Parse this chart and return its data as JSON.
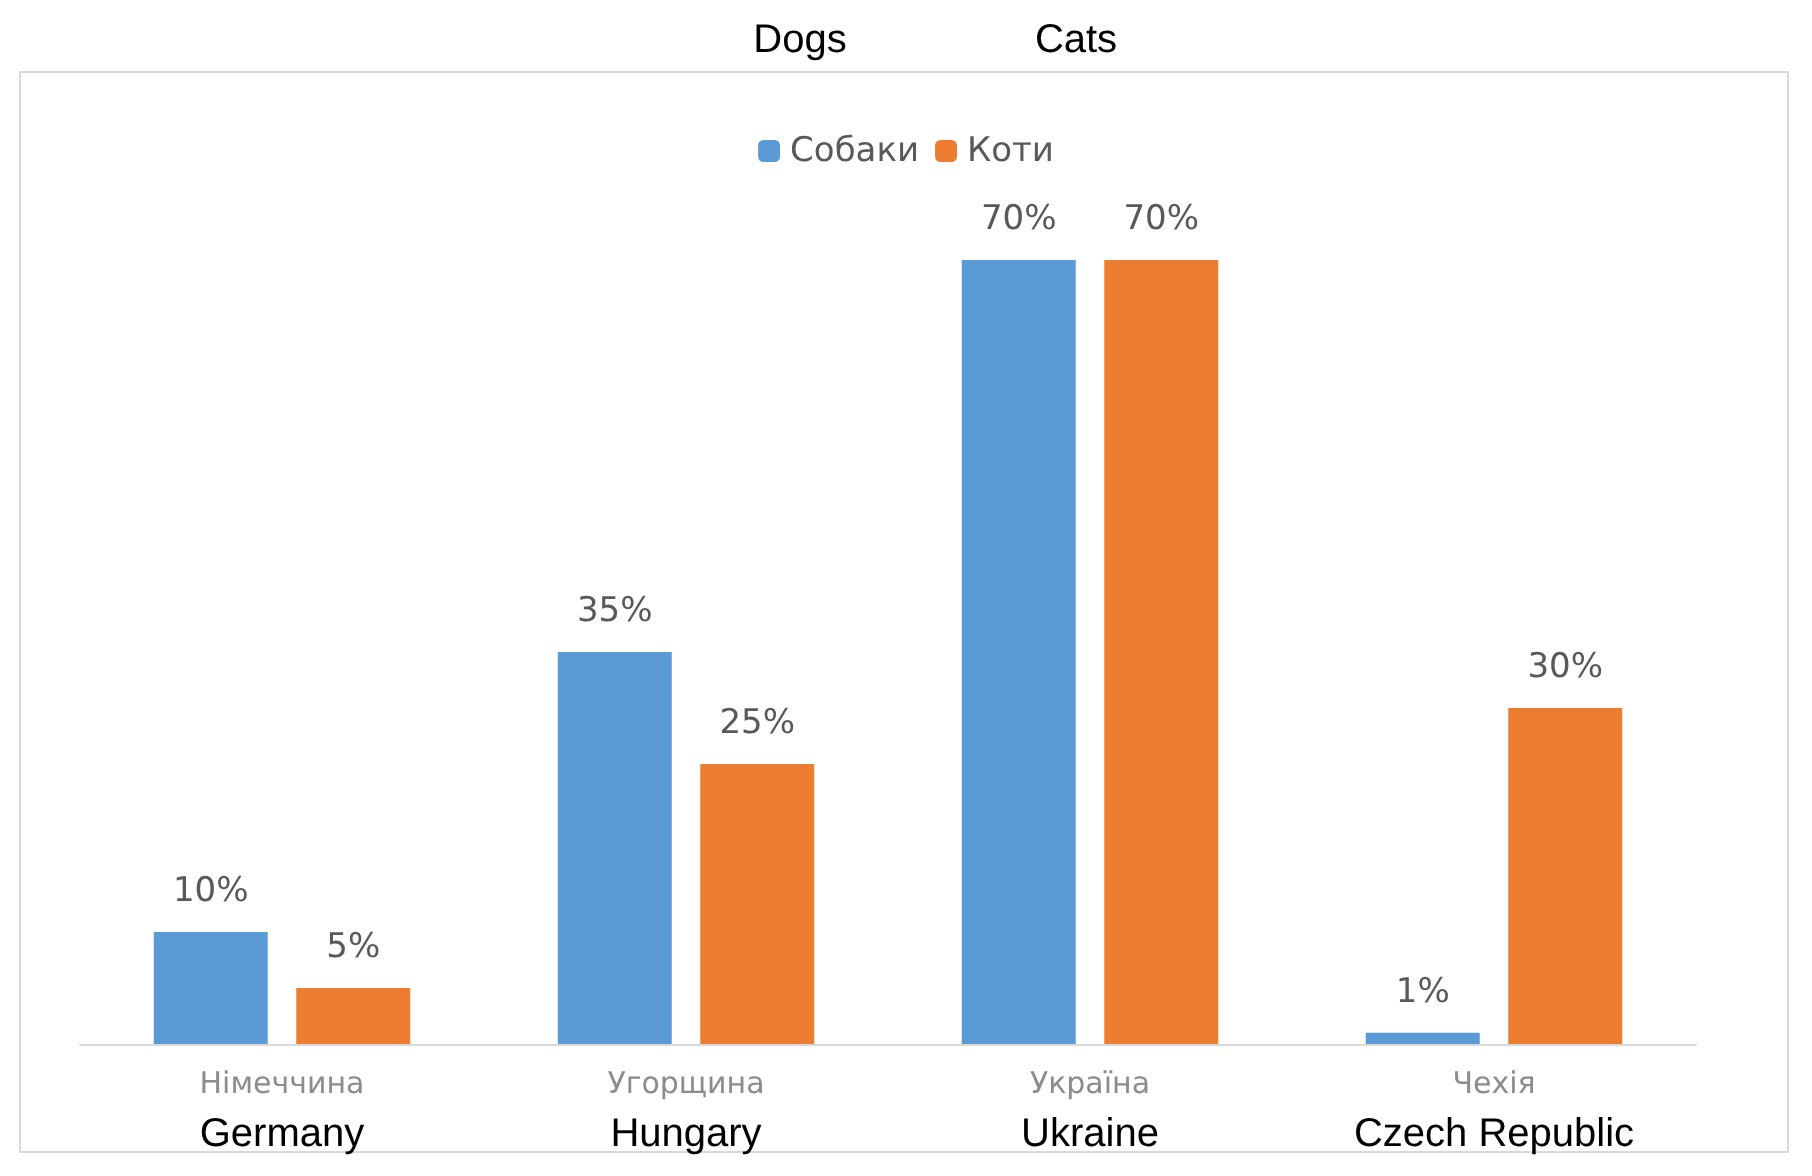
{
  "chart_data": {
    "type": "bar",
    "categories": [
      "Німеччина",
      "Угорщина",
      "Україна",
      "Чехія"
    ],
    "series": [
      {
        "name": "Собаки",
        "color": "#5b9bd5",
        "values": [
          10,
          35,
          70,
          1
        ],
        "value_labels": [
          "10%",
          "35%",
          "70%",
          "1%"
        ]
      },
      {
        "name": "Коти",
        "color": "#ed7d31",
        "values": [
          5,
          25,
          70,
          30
        ],
        "value_labels": [
          "5%",
          "25%",
          "70%",
          "30%"
        ]
      }
    ],
    "legend": "top",
    "annotations": [
      "Dogs",
      "Cats",
      "Germany",
      "Hungary",
      "Ukraine",
      "Czech Republic"
    ]
  }
}
